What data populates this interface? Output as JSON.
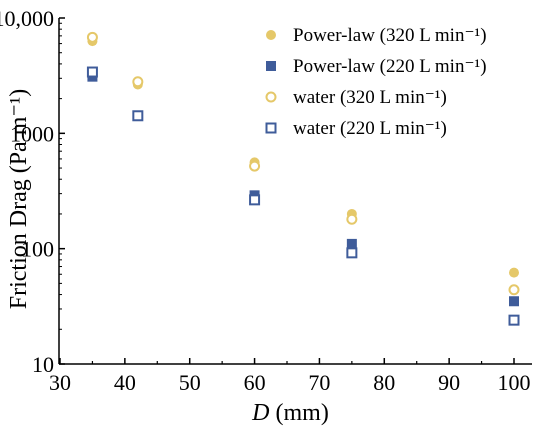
{
  "chart_data": {
    "type": "scatter",
    "xlabel_var": "D",
    "xlabel_unit": " (mm)",
    "ylabel": "Friction Drag (Pa m⁻¹)",
    "x_ticks": [
      "30",
      "40",
      "50",
      "60",
      "70",
      "80",
      "90",
      "100"
    ],
    "y_ticks": [
      "10",
      "100",
      "1000",
      "10,000"
    ],
    "xlim": [
      30,
      102
    ],
    "ylim": [
      10,
      10000
    ],
    "y_scale": "log",
    "grid": false,
    "legend_position": "top-right",
    "series": [
      {
        "name": "Power-law (320 L min⁻¹)",
        "marker": "filled-circle",
        "color": "#e5c869",
        "points": [
          [
            35,
            6300
          ],
          [
            42,
            2650
          ],
          [
            60,
            560
          ],
          [
            75,
            200
          ],
          [
            100,
            62
          ]
        ]
      },
      {
        "name": "Power-law (220 L min⁻¹)",
        "marker": "filled-square",
        "color": "#3f5c9a",
        "points": [
          [
            35,
            3100
          ],
          [
            42,
            1420
          ],
          [
            60,
            290
          ],
          [
            75,
            110
          ],
          [
            100,
            35
          ]
        ]
      },
      {
        "name": "water (320 L min⁻¹)",
        "marker": "open-circle",
        "color": "#e5c869",
        "points": [
          [
            35,
            6800
          ],
          [
            42,
            2800
          ],
          [
            60,
            520
          ],
          [
            75,
            180
          ],
          [
            100,
            44
          ]
        ]
      },
      {
        "name": "water (220 L min⁻¹)",
        "marker": "open-square",
        "color": "#3f5c9a",
        "points": [
          [
            35,
            3400
          ],
          [
            42,
            1420
          ],
          [
            60,
            265
          ],
          [
            75,
            92
          ],
          [
            100,
            24
          ]
        ]
      }
    ]
  }
}
